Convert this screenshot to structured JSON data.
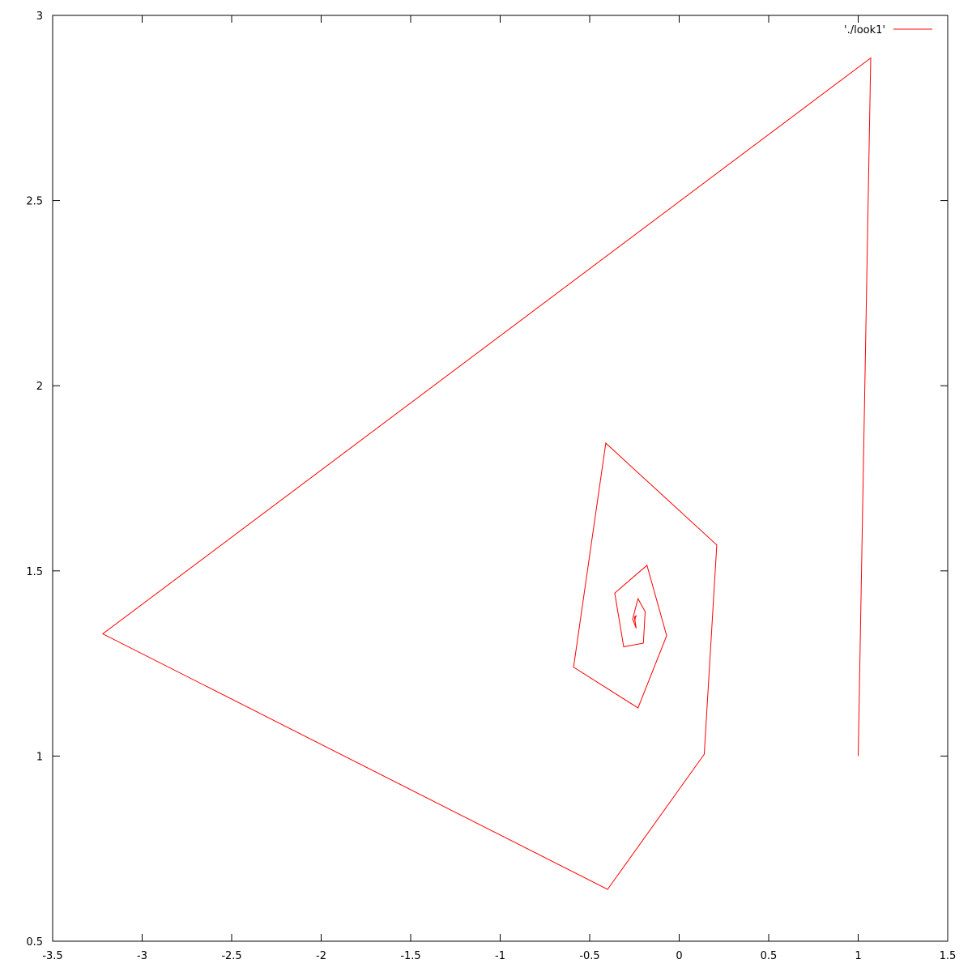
{
  "chart_data": {
    "type": "line",
    "title": "",
    "xlabel": "",
    "ylabel": "",
    "xlim": [
      -3.5,
      1.5
    ],
    "ylim": [
      0.5,
      3
    ],
    "grid": false,
    "legend_position": "top-right",
    "xticks": [
      -3.5,
      -3,
      -2.5,
      -2,
      -1.5,
      -1,
      -0.5,
      0,
      0.5,
      1,
      1.5
    ],
    "xtick_labels": [
      "-3.5",
      "-3",
      "-2.5",
      "-2",
      "-1.5",
      "-1",
      "-0.5",
      "0",
      "0.5",
      "1",
      "1.5"
    ],
    "yticks": [
      0.5,
      1,
      1.5,
      2,
      2.5,
      3
    ],
    "ytick_labels": [
      "0.5",
      "1",
      "1.5",
      "2",
      "2.5",
      "3"
    ],
    "series": [
      {
        "name": "'./look1'",
        "color": "#ff0000",
        "x": [
          1.0,
          1.07,
          -3.22,
          -0.4,
          0.14,
          0.21,
          -0.41,
          -0.59,
          -0.23,
          -0.07,
          -0.18,
          -0.36,
          -0.31,
          -0.2,
          -0.19,
          -0.23,
          -0.26,
          -0.24,
          -0.25,
          -0.24,
          -0.25,
          -0.245
        ],
        "y": [
          1.0,
          2.885,
          1.33,
          0.64,
          1.005,
          1.57,
          1.845,
          1.24,
          1.13,
          1.325,
          1.515,
          1.44,
          1.295,
          1.305,
          1.39,
          1.425,
          1.37,
          1.345,
          1.375,
          1.38,
          1.365,
          1.37
        ]
      }
    ]
  }
}
